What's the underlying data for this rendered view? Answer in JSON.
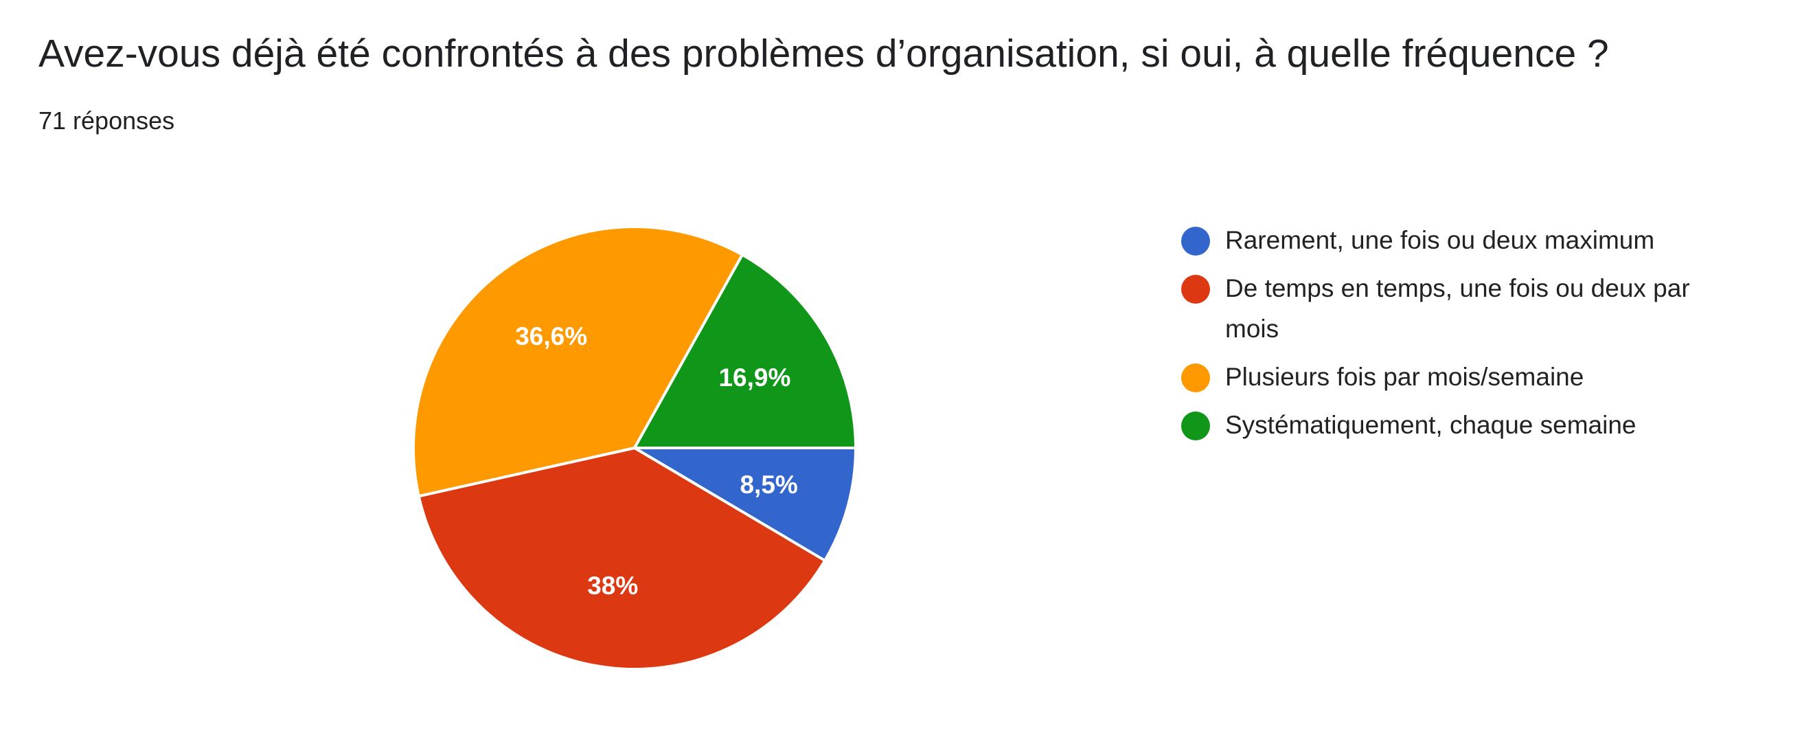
{
  "question": {
    "title": "Avez-vous déjà été confrontés à des problèmes d’organisation, si oui, à quelle fréquence ?",
    "responses": "71 réponses"
  },
  "chart_data": {
    "type": "pie",
    "slices": [
      {
        "label": "Rarement, une fois ou deux maximum",
        "value": 8.5,
        "display": "8,5%",
        "color": "#3366cc"
      },
      {
        "label": "De temps en temps, une fois ou deux par mois",
        "value": 38,
        "display": "38%",
        "color": "#dc3912"
      },
      {
        "label": "Plusieurs fois par mois/semaine",
        "value": 36.6,
        "display": "36,6%",
        "color": "#ff9900"
      },
      {
        "label": "Systématiquement, chaque semaine",
        "value": 16.9,
        "display": "16,9%",
        "color": "#109618"
      }
    ],
    "legend_position": "right"
  }
}
